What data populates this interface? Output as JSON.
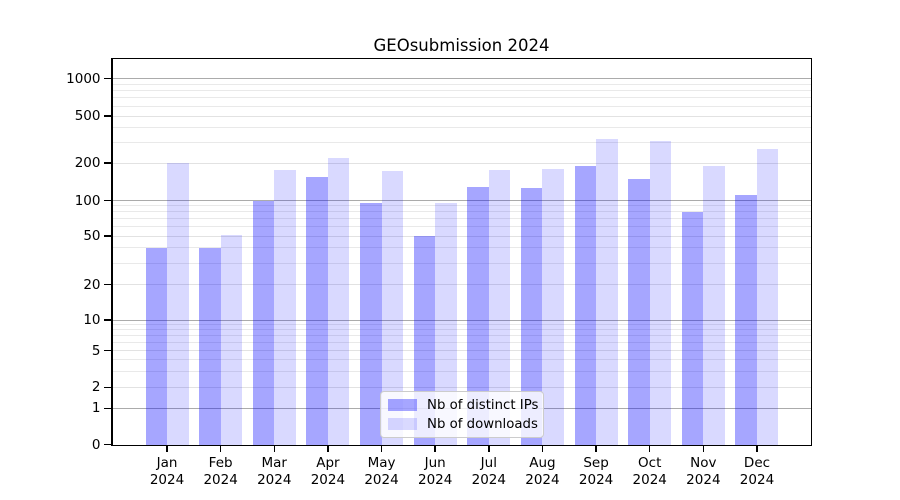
{
  "chart_data": {
    "type": "bar",
    "title": "GEOsubmission 2024",
    "categories": [
      "Jan",
      "Feb",
      "Mar",
      "Apr",
      "May",
      "Jun",
      "Jul",
      "Aug",
      "Sep",
      "Oct",
      "Nov",
      "Dec"
    ],
    "category_year": "2024",
    "series": [
      {
        "name": "Nb of distinct IPs",
        "color": "#0000ff",
        "alpha": 0.35,
        "values": [
          40,
          40,
          100,
          155,
          96,
          50,
          128,
          126,
          190,
          149,
          80,
          111
        ]
      },
      {
        "name": "Nb of downloads",
        "color": "#0000ff",
        "alpha": 0.15,
        "values": [
          201,
          51,
          176,
          220,
          172,
          95,
          177,
          180,
          320,
          308,
          190,
          261
        ]
      }
    ],
    "xlabel": "",
    "ylabel": "",
    "yscale": "symlog",
    "yticks": [
      0,
      1,
      2,
      5,
      10,
      20,
      50,
      100,
      200,
      500,
      1000
    ],
    "ylim": [
      0,
      1400
    ],
    "grid": true,
    "legend_position": "lower center",
    "colors": {
      "bar_ips": "rgba(0,0,255,0.35)",
      "bar_downloads": "rgba(0,0,255,0.15)",
      "grid_major": "#ababab",
      "grid_minor": "#e9e9e9",
      "spine": "#000000"
    }
  }
}
